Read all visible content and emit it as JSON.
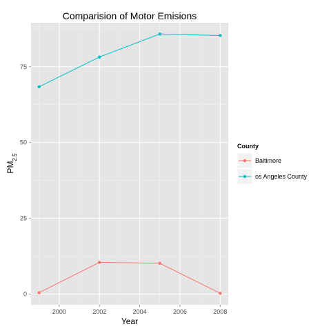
{
  "chart_data": {
    "type": "line",
    "title": "Comparision of Motor Emisions",
    "xlabel": "Year",
    "ylabel_main": "PM",
    "ylabel_sub": "2.5",
    "x": [
      1999,
      2002,
      2005,
      2008
    ],
    "xlim": [
      1998.6,
      2008.4
    ],
    "ylim": [
      -3.5,
      89.5
    ],
    "xticks": [
      2000,
      2002,
      2004,
      2006,
      2008
    ],
    "yticks": [
      0,
      25,
      50,
      75
    ],
    "grid": true,
    "legend": {
      "title": "County",
      "placement": "right"
    },
    "series": [
      {
        "name": "Baltimore",
        "color": "#F8766D",
        "values": [
          0.5,
          10.5,
          10.2,
          0.3
        ]
      },
      {
        "name": "os Angeles County",
        "color": "#00BFC4",
        "values": [
          68.4,
          78.2,
          85.8,
          85.3
        ]
      }
    ]
  }
}
